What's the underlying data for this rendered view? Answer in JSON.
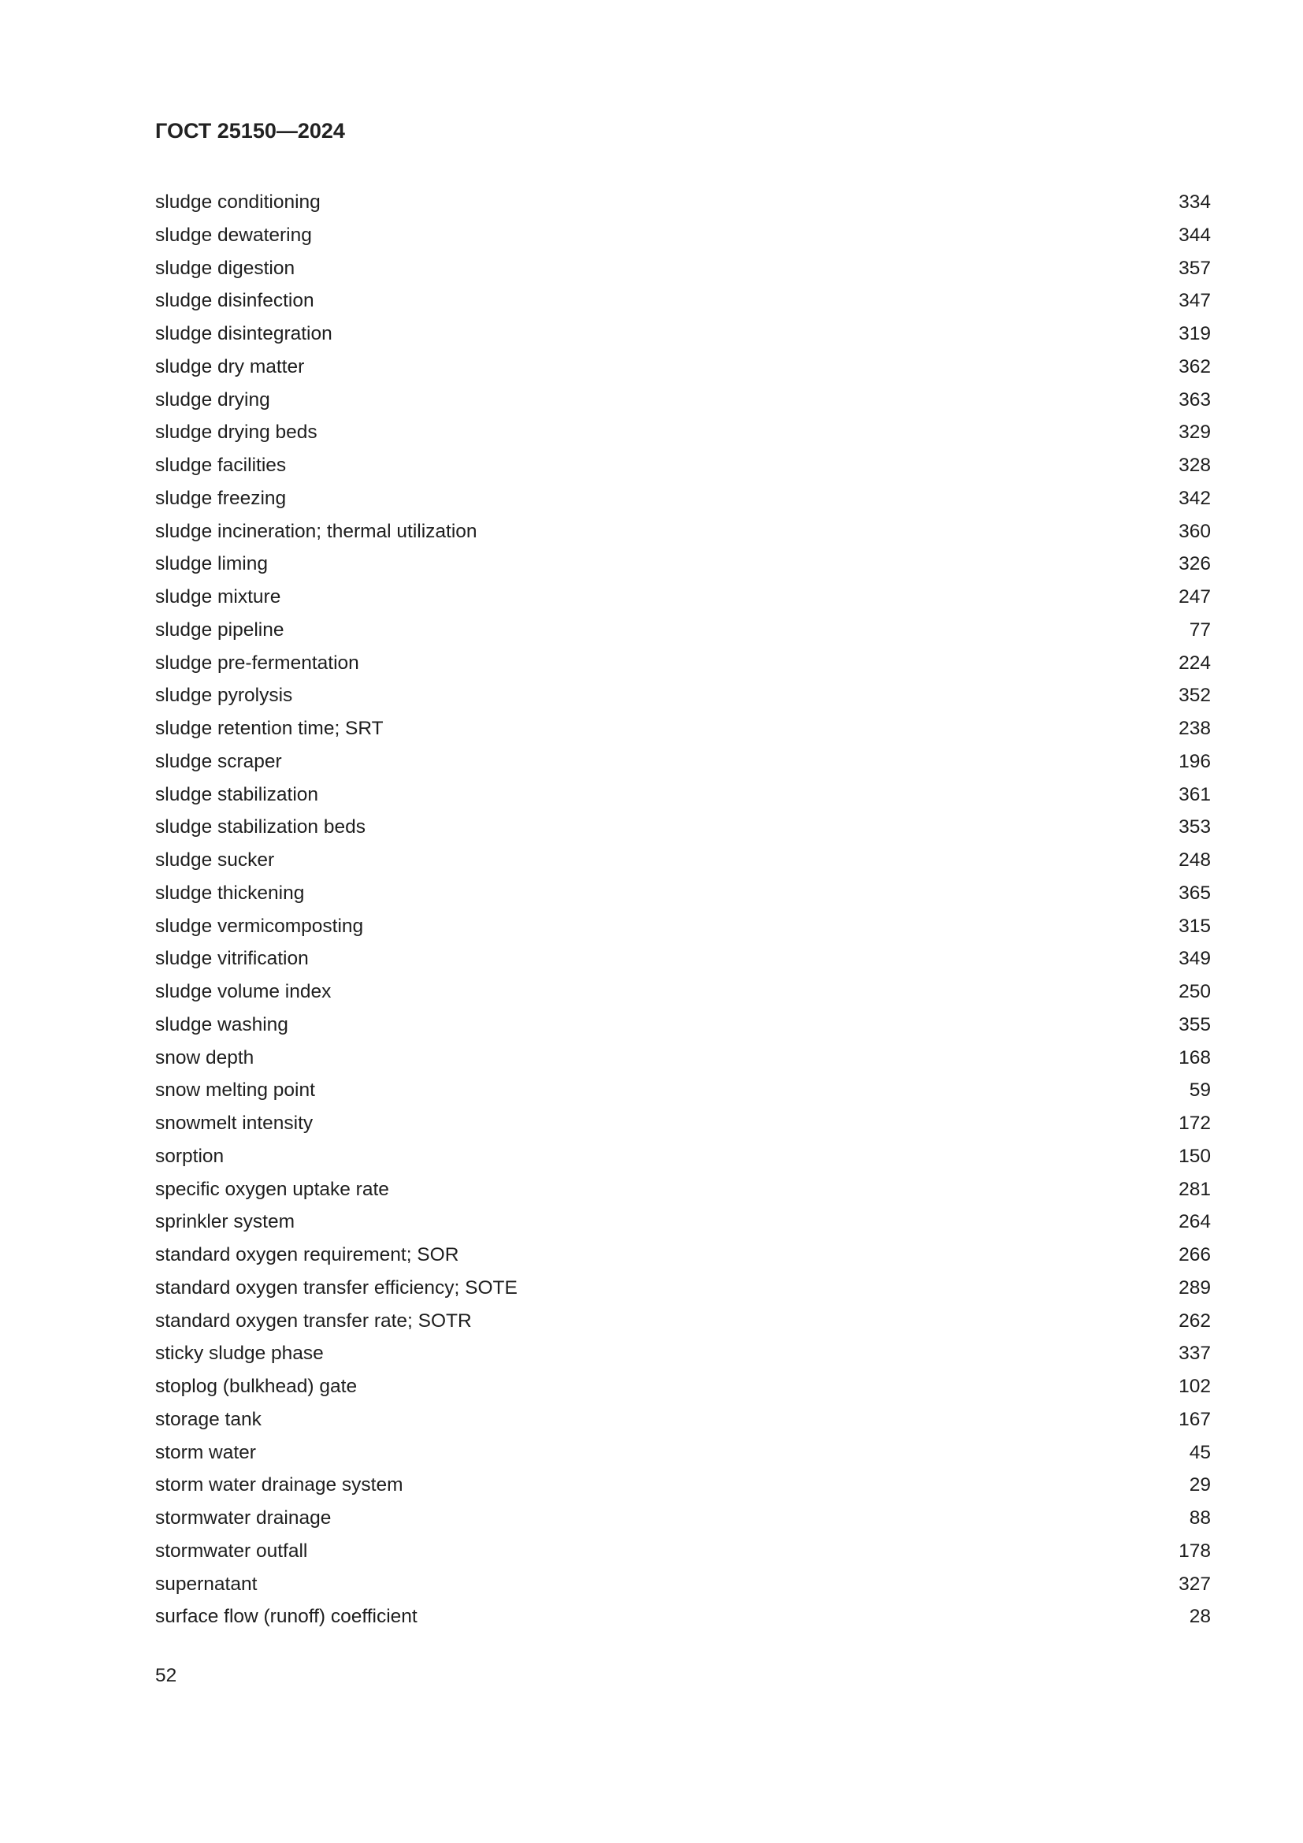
{
  "header": {
    "title": "ГОСТ 25150—2024"
  },
  "entries": [
    {
      "term": "sludge conditioning",
      "page": "334"
    },
    {
      "term": "sludge dewatering",
      "page": "344"
    },
    {
      "term": "sludge digestion",
      "page": "357"
    },
    {
      "term": "sludge disinfection",
      "page": "347"
    },
    {
      "term": "sludge disintegration",
      "page": "319"
    },
    {
      "term": "sludge dry matter",
      "page": "362"
    },
    {
      "term": "sludge drying",
      "page": "363"
    },
    {
      "term": "sludge drying beds",
      "page": "329"
    },
    {
      "term": "sludge facilities",
      "page": "328"
    },
    {
      "term": "sludge freezing",
      "page": "342"
    },
    {
      "term": "sludge incineration; thermal utilization",
      "page": "360"
    },
    {
      "term": "sludge liming",
      "page": "326"
    },
    {
      "term": "sludge mixture",
      "page": "247"
    },
    {
      "term": "sludge pipeline",
      "page": "77"
    },
    {
      "term": "sludge pre-fermentation",
      "page": "224"
    },
    {
      "term": "sludge pyrolysis",
      "page": "352"
    },
    {
      "term": "sludge retention time; SRT",
      "page": "238"
    },
    {
      "term": "sludge scraper",
      "page": "196"
    },
    {
      "term": "sludge stabilization",
      "page": "361"
    },
    {
      "term": "sludge stabilization beds",
      "page": "353"
    },
    {
      "term": "sludge sucker",
      "page": "248"
    },
    {
      "term": "sludge thickening",
      "page": "365"
    },
    {
      "term": "sludge vermicomposting",
      "page": "315"
    },
    {
      "term": "sludge vitrification",
      "page": "349"
    },
    {
      "term": "sludge volume index",
      "page": "250"
    },
    {
      "term": "sludge washing",
      "page": "355"
    },
    {
      "term": "snow depth",
      "page": "168"
    },
    {
      "term": "snow melting point",
      "page": "59"
    },
    {
      "term": "snowmelt intensity",
      "page": "172"
    },
    {
      "term": "sorption",
      "page": "150"
    },
    {
      "term": "specific oxygen uptake rate",
      "page": "281"
    },
    {
      "term": "sprinkler system",
      "page": "264"
    },
    {
      "term": "standard oxygen requirement; SOR",
      "page": "266"
    },
    {
      "term": "standard oxygen transfer efficiency; SOTE",
      "page": "289"
    },
    {
      "term": "standard oxygen transfer rate; SOTR",
      "page": "262"
    },
    {
      "term": "sticky sludge phase",
      "page": "337"
    },
    {
      "term": "stoplog (bulkhead) gate",
      "page": "102"
    },
    {
      "term": "storage tank",
      "page": "167"
    },
    {
      "term": "storm water",
      "page": "45"
    },
    {
      "term": "storm water drainage system",
      "page": "29"
    },
    {
      "term": "stormwater drainage",
      "page": "88"
    },
    {
      "term": "stormwater outfall",
      "page": "178"
    },
    {
      "term": "supernatant",
      "page": "327"
    },
    {
      "term": "surface flow (runoff) coefficient",
      "page": "28"
    }
  ],
  "footer": {
    "page_number": "52"
  }
}
